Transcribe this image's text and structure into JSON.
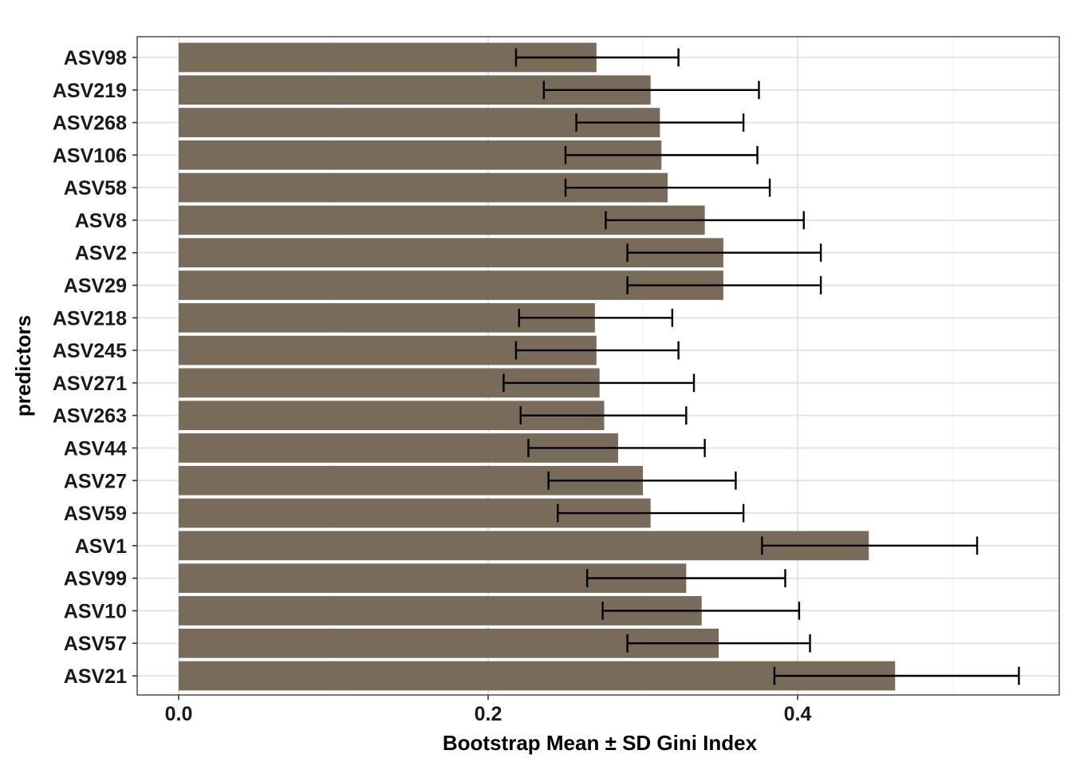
{
  "chart_data": {
    "type": "bar",
    "orientation": "horizontal",
    "title": "",
    "xlabel": "Bootstrap Mean ± SD Gini Index",
    "ylabel": "predictors",
    "xlim": [
      -0.027,
      0.567
    ],
    "xticks": [
      0.0,
      0.2,
      0.4
    ],
    "xtick_labels": [
      "0.0",
      "0.2",
      "0.4"
    ],
    "xminor": [
      0.1,
      0.3,
      0.5
    ],
    "grid": true,
    "legend": "none",
    "bar_color": "#786b5a",
    "errorbar_color": "#000000",
    "categories": [
      "ASV98",
      "ASV219",
      "ASV268",
      "ASV106",
      "ASV58",
      "ASV8",
      "ASV2",
      "ASV29",
      "ASV218",
      "ASV245",
      "ASV271",
      "ASV263",
      "ASV44",
      "ASV27",
      "ASV59",
      "ASV1",
      "ASV99",
      "ASV10",
      "ASV57",
      "ASV21"
    ],
    "values": [
      0.27,
      0.305,
      0.311,
      0.312,
      0.316,
      0.34,
      0.352,
      0.352,
      0.269,
      0.27,
      0.272,
      0.275,
      0.284,
      0.3,
      0.305,
      0.446,
      0.328,
      0.338,
      0.349,
      0.463
    ],
    "error_low": [
      0.218,
      0.236,
      0.257,
      0.25,
      0.25,
      0.276,
      0.29,
      0.29,
      0.22,
      0.218,
      0.21,
      0.221,
      0.226,
      0.239,
      0.245,
      0.377,
      0.264,
      0.274,
      0.29,
      0.385
    ],
    "error_high": [
      0.323,
      0.375,
      0.365,
      0.374,
      0.382,
      0.404,
      0.415,
      0.415,
      0.319,
      0.323,
      0.333,
      0.328,
      0.34,
      0.36,
      0.365,
      0.516,
      0.392,
      0.401,
      0.408,
      0.543
    ]
  }
}
